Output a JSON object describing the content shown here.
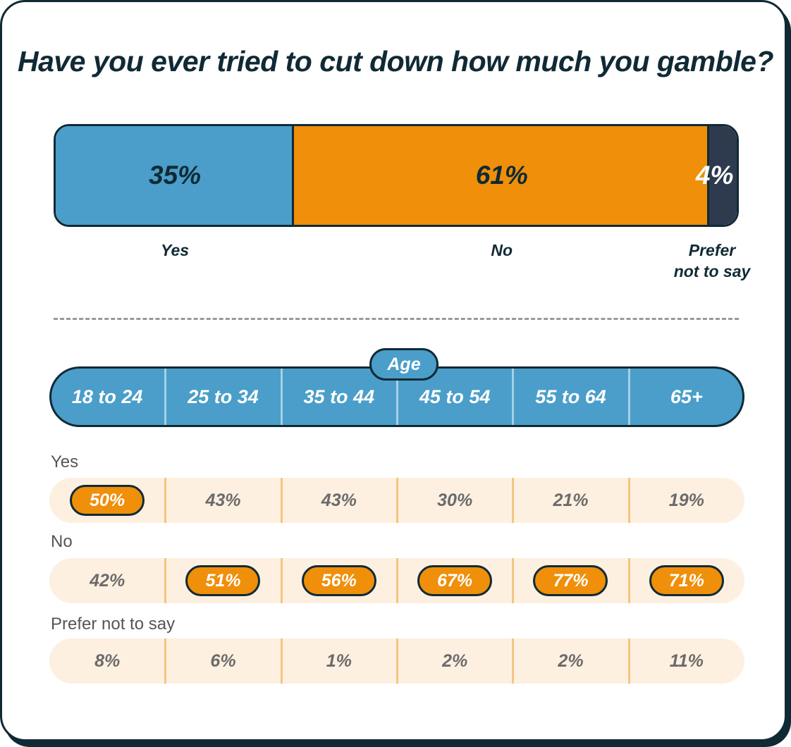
{
  "title": "Have you ever tried to cut down how much you gamble?",
  "colors": {
    "yes": "#4a9ec9",
    "no": "#ef8f0a",
    "prefer_not": "#2e3a4d",
    "dark": "#102a35",
    "highlight": "#ef8f0a"
  },
  "chart_data": [
    {
      "type": "bar",
      "title": "Have you ever tried to cut down how much you gamble?",
      "categories": [
        "Yes",
        "No",
        "Prefer not to say"
      ],
      "values": [
        35,
        61,
        4
      ],
      "value_labels": [
        "35%",
        "61%",
        "4%"
      ],
      "stacked": true,
      "orientation": "horizontal",
      "label_lines": [
        [
          "Yes"
        ],
        [
          "No"
        ],
        [
          "Prefer",
          "not to say"
        ]
      ]
    },
    {
      "type": "table",
      "header_label": "Age",
      "columns": [
        "18 to 24",
        "25 to 34",
        "35 to 44",
        "45 to 54",
        "55 to 64",
        "65+"
      ],
      "rows": [
        {
          "name": "Yes",
          "values": [
            "50%",
            "43%",
            "43%",
            "30%",
            "21%",
            "19%"
          ],
          "highlight": [
            true,
            false,
            false,
            false,
            false,
            false
          ]
        },
        {
          "name": "No",
          "values": [
            "42%",
            "51%",
            "56%",
            "67%",
            "77%",
            "71%"
          ],
          "highlight": [
            false,
            true,
            true,
            true,
            true,
            true
          ]
        },
        {
          "name": "Prefer not to say",
          "values": [
            "8%",
            "6%",
            "1%",
            "2%",
            "2%",
            "11%"
          ],
          "highlight": [
            false,
            false,
            false,
            false,
            false,
            false
          ]
        }
      ]
    }
  ]
}
